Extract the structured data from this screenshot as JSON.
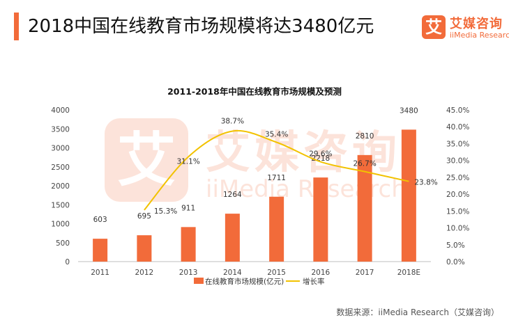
{
  "header": {
    "title": "2018中国在线教育市场规模将达3480亿元"
  },
  "brand": {
    "logo_glyph": "艾",
    "name_cn": "艾媒咨询",
    "name_en": "iiMedia Research",
    "watermark_en": "iiMedia Research",
    "color": "#f26b3a"
  },
  "chart_data": {
    "type": "bar",
    "title": "2011-2018年中国在线教育市场规模及预测",
    "categories": [
      "2011",
      "2012",
      "2013",
      "2014",
      "2015",
      "2016",
      "2017",
      "2018E"
    ],
    "series": [
      {
        "name": "在线教育市场规模(亿元)",
        "type": "bar",
        "axis": "left",
        "color": "#f26b3a",
        "values": [
          603,
          695,
          911,
          1264,
          1711,
          2218,
          2810,
          3480
        ],
        "labels": [
          "603",
          "695",
          "911",
          "1264",
          "1711",
          "2218",
          "2810",
          "3480"
        ]
      },
      {
        "name": "增长率",
        "type": "line",
        "axis": "right",
        "color": "#f2c200",
        "values": [
          null,
          15.3,
          31.1,
          38.7,
          35.4,
          29.6,
          26.7,
          23.8
        ],
        "labels": [
          "",
          "15.3%",
          "31.1%",
          "38.7%",
          "35.4%",
          "29.6%",
          "26.7%",
          "23.8%"
        ]
      }
    ],
    "y_left": {
      "range": [
        0,
        4000
      ],
      "ticks": [
        "0",
        "500",
        "1000",
        "1500",
        "2000",
        "2500",
        "3000",
        "3500",
        "4000"
      ]
    },
    "y_right": {
      "range": [
        0,
        45
      ],
      "ticks": [
        "0.0%",
        "5.0%",
        "10.0%",
        "15.0%",
        "20.0%",
        "25.0%",
        "30.0%",
        "35.0%",
        "40.0%",
        "45.0%"
      ]
    },
    "grid": false,
    "legend_position": "bottom"
  },
  "footer": {
    "source": "数据来源：iiMedia Research（艾媒咨询）"
  }
}
